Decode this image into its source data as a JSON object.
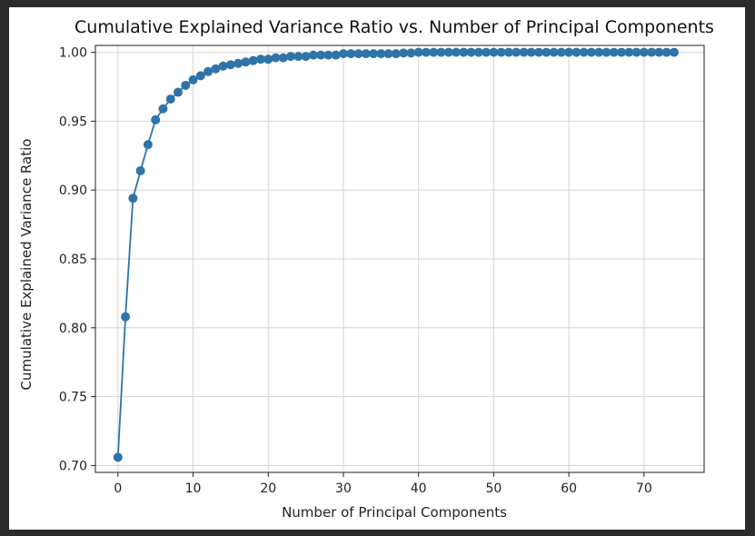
{
  "chart_data": {
    "type": "line",
    "title": "Cumulative Explained Variance Ratio vs. Number of Principal Components",
    "xlabel": "Number of Principal Components",
    "ylabel": "Cumulative Explained Variance Ratio",
    "xlim": [
      -3,
      78
    ],
    "ylim": [
      0.695,
      1.005
    ],
    "xticks": [
      0,
      10,
      20,
      30,
      40,
      50,
      60,
      70
    ],
    "yticks": [
      0.7,
      0.75,
      0.8,
      0.85,
      0.9,
      0.95,
      1.0
    ],
    "ytick_labels": [
      "0.70",
      "0.75",
      "0.80",
      "0.85",
      "0.90",
      "0.95",
      "1.00"
    ],
    "grid": true,
    "marker": "circle",
    "color": "#2e74a8",
    "series": [
      {
        "x": [
          0,
          1,
          2,
          3,
          4,
          5,
          6,
          7,
          8,
          9,
          10,
          11,
          12,
          13,
          14,
          15,
          16,
          17,
          18,
          19,
          20,
          21,
          22,
          23,
          24,
          25,
          26,
          27,
          28,
          29,
          30,
          31,
          32,
          33,
          34,
          35,
          36,
          37,
          38,
          39,
          40,
          41,
          42,
          43,
          44,
          45,
          46,
          47,
          48,
          49,
          50,
          51,
          52,
          53,
          54,
          55,
          56,
          57,
          58,
          59,
          60,
          61,
          62,
          63,
          64,
          65,
          66,
          67,
          68,
          69,
          70,
          71,
          72,
          73,
          74
        ],
        "values": [
          0.706,
          0.808,
          0.894,
          0.914,
          0.933,
          0.951,
          0.959,
          0.966,
          0.971,
          0.976,
          0.98,
          0.983,
          0.986,
          0.988,
          0.99,
          0.991,
          0.992,
          0.993,
          0.994,
          0.995,
          0.995,
          0.996,
          0.996,
          0.997,
          0.997,
          0.997,
          0.998,
          0.998,
          0.998,
          0.998,
          0.999,
          0.999,
          0.999,
          0.999,
          0.999,
          0.999,
          0.999,
          0.999,
          0.9995,
          0.9995,
          1.0,
          1.0,
          1.0,
          1.0,
          1.0,
          1.0,
          1.0,
          1.0,
          1.0,
          1.0,
          1.0,
          1.0,
          1.0,
          1.0,
          1.0,
          1.0,
          1.0,
          1.0,
          1.0,
          1.0,
          1.0,
          1.0,
          1.0,
          1.0,
          1.0,
          1.0,
          1.0,
          1.0,
          1.0,
          1.0,
          1.0,
          1.0,
          1.0,
          1.0,
          1.0
        ]
      }
    ]
  }
}
